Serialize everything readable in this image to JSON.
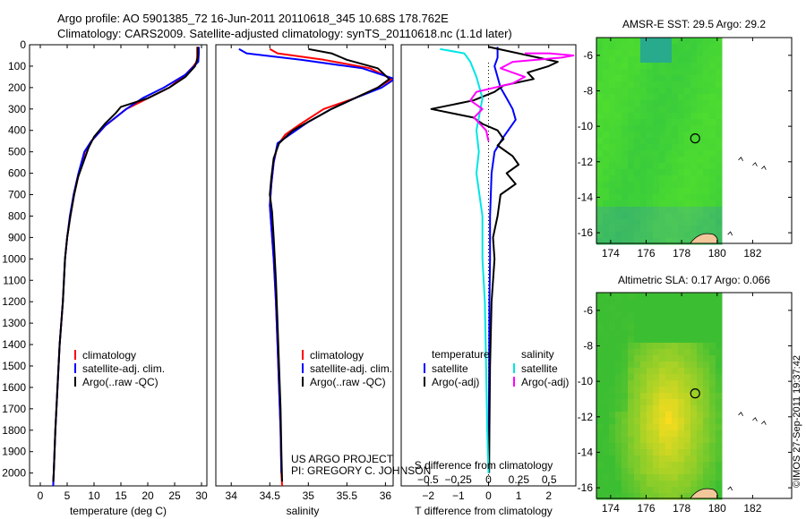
{
  "header": {
    "title_line1": "Argo profile: AO 5901385_72 16-Jun-2011 20110618_345 10.68S 178.762E",
    "title_line2": "Climatology: CARS2009. Satellite-adjusted climatology: synTS_20110618.nc (1.1d later)"
  },
  "credit": {
    "line1": "US ARGO PROJECT",
    "line2": "PI: GREGORY C. JOHNSON"
  },
  "stamp": "©IMOS 27-Sep-2011 19:37:42",
  "colors": {
    "clim": "#ff0000",
    "sat": "#0000ff",
    "argo": "#000000",
    "sat_s": "#00e5e5",
    "argo_s": "#ff00ff"
  },
  "chart_data": [
    {
      "id": "temperature",
      "type": "line",
      "title": "",
      "xlabel": "temperature (deg C)",
      "ylabel": "",
      "xlim": [
        -2,
        31
      ],
      "ylim": [
        2060,
        0
      ],
      "xticks": [
        0,
        5,
        10,
        15,
        20,
        25,
        30
      ],
      "yticks": [
        0,
        100,
        200,
        300,
        400,
        500,
        600,
        700,
        800,
        900,
        1000,
        1100,
        1200,
        1300,
        1400,
        1500,
        1600,
        1700,
        1800,
        1900,
        2000
      ],
      "legend": {
        "position": "lower-left",
        "entries": [
          "climatology",
          "satellite-adj. clim.",
          "Argo(..raw -QC)"
        ]
      },
      "series": [
        {
          "name": "climatology",
          "color": "#ff0000",
          "points": [
            [
              29.2,
              10
            ],
            [
              29.2,
              50
            ],
            [
              29.1,
              80
            ],
            [
              28.5,
              100
            ],
            [
              27,
              140
            ],
            [
              24,
              200
            ],
            [
              20,
              250
            ],
            [
              16,
              300
            ],
            [
              12,
              380
            ],
            [
              9.5,
              450
            ],
            [
              8.3,
              500
            ],
            [
              7.2,
              600
            ],
            [
              6.3,
              700
            ],
            [
              5.6,
              800
            ],
            [
              5,
              900
            ],
            [
              4.6,
              1000
            ],
            [
              4.2,
              1200
            ],
            [
              3.6,
              1400
            ],
            [
              3.2,
              1600
            ],
            [
              2.8,
              1800
            ],
            [
              2.5,
              2000
            ],
            [
              2.4,
              2060
            ]
          ]
        },
        {
          "name": "satellite-adj. clim.",
          "color": "#0000ff",
          "points": [
            [
              29.5,
              10
            ],
            [
              29.5,
              40
            ],
            [
              29.4,
              80
            ],
            [
              28.6,
              100
            ],
            [
              27,
              140
            ],
            [
              23,
              200
            ],
            [
              19,
              250
            ],
            [
              16,
              300
            ],
            [
              12,
              380
            ],
            [
              9.5,
              450
            ],
            [
              8.2,
              500
            ],
            [
              7.1,
              600
            ],
            [
              6.2,
              700
            ],
            [
              5.5,
              800
            ],
            [
              5,
              900
            ],
            [
              4.6,
              1000
            ],
            [
              4.2,
              1200
            ],
            [
              3.6,
              1400
            ],
            [
              3.2,
              1600
            ],
            [
              2.8,
              1800
            ],
            [
              2.5,
              2000
            ],
            [
              2.4,
              2060
            ]
          ]
        },
        {
          "name": "Argo(..raw -QC)",
          "color": "#000000",
          "points": [
            [
              29.3,
              10
            ],
            [
              29.3,
              60
            ],
            [
              28.8,
              100
            ],
            [
              27,
              150
            ],
            [
              24,
              200
            ],
            [
              20,
              250
            ],
            [
              15,
              290
            ],
            [
              14,
              320
            ],
            [
              12,
              370
            ],
            [
              10,
              430
            ],
            [
              9,
              480
            ],
            [
              8,
              550
            ],
            [
              7,
              620
            ],
            [
              6.3,
              700
            ],
            [
              5.6,
              800
            ],
            [
              5,
              900
            ],
            [
              4.6,
              1000
            ],
            [
              4.2,
              1200
            ],
            [
              3.6,
              1400
            ],
            [
              3.2,
              1600
            ],
            [
              2.8,
              1800
            ],
            [
              2.5,
              2000
            ],
            [
              2.4,
              2040
            ]
          ]
        }
      ]
    },
    {
      "id": "salinity",
      "type": "line",
      "title": "",
      "xlabel": "salinity",
      "ylabel": "",
      "xlim": [
        33.8,
        36.1
      ],
      "ylim": [
        2060,
        0
      ],
      "xticks": [
        34,
        34.5,
        35,
        35.5,
        36
      ],
      "yticks": [],
      "legend": {
        "position": "lower-left",
        "entries": [
          "climatology",
          "satellite-adj. clim.",
          "Argo(..raw -QC)"
        ]
      },
      "series": [
        {
          "name": "climatology",
          "color": "#ff0000",
          "points": [
            [
              34.5,
              20
            ],
            [
              34.6,
              40
            ],
            [
              35.2,
              70
            ],
            [
              35.8,
              110
            ],
            [
              36.08,
              160
            ],
            [
              35.9,
              200
            ],
            [
              35.6,
              250
            ],
            [
              35.2,
              300
            ],
            [
              34.9,
              370
            ],
            [
              34.7,
              420
            ],
            [
              34.6,
              470
            ],
            [
              34.55,
              550
            ],
            [
              34.52,
              650
            ],
            [
              34.5,
              750
            ],
            [
              34.52,
              850
            ],
            [
              34.55,
              1000
            ],
            [
              34.58,
              1200
            ],
            [
              34.6,
              1400
            ],
            [
              34.62,
              1600
            ],
            [
              34.64,
              1800
            ],
            [
              34.65,
              2000
            ],
            [
              34.66,
              2060
            ]
          ]
        },
        {
          "name": "satellite-adj. clim.",
          "color": "#0000ff",
          "points": [
            [
              34.1,
              20
            ],
            [
              34.2,
              40
            ],
            [
              34.9,
              70
            ],
            [
              35.7,
              110
            ],
            [
              36.12,
              160
            ],
            [
              35.95,
              200
            ],
            [
              35.6,
              250
            ],
            [
              35.3,
              300
            ],
            [
              35,
              360
            ],
            [
              34.8,
              410
            ],
            [
              34.6,
              460
            ],
            [
              34.55,
              550
            ],
            [
              34.52,
              650
            ],
            [
              34.5,
              750
            ],
            [
              34.52,
              850
            ],
            [
              34.55,
              1000
            ],
            [
              34.58,
              1200
            ],
            [
              34.6,
              1400
            ],
            [
              34.62,
              1600
            ],
            [
              34.64,
              1800
            ],
            [
              34.65,
              2000
            ]
          ]
        },
        {
          "name": "Argo(..raw -QC)",
          "color": "#000000",
          "points": [
            [
              35.0,
              20
            ],
            [
              35.3,
              40
            ],
            [
              35.5,
              70
            ],
            [
              35.9,
              110
            ],
            [
              36.05,
              160
            ],
            [
              35.9,
              200
            ],
            [
              35.6,
              250
            ],
            [
              35.3,
              300
            ],
            [
              35.05,
              350
            ],
            [
              34.8,
              400
            ],
            [
              34.62,
              460
            ],
            [
              34.55,
              530
            ],
            [
              34.52,
              620
            ],
            [
              34.5,
              700
            ],
            [
              34.53,
              780
            ],
            [
              34.55,
              900
            ],
            [
              34.58,
              1100
            ],
            [
              34.6,
              1300
            ],
            [
              34.62,
              1500
            ],
            [
              34.64,
              1700
            ],
            [
              34.65,
              1900
            ],
            [
              34.66,
              2040
            ]
          ]
        }
      ]
    },
    {
      "id": "difference",
      "type": "line",
      "title": "",
      "xlabel": "T difference from climatology",
      "xlabel_top": "S difference from climatology",
      "ylabel": "",
      "xlim": [
        -2.9,
        2.9
      ],
      "ylim": [
        2060,
        0
      ],
      "xticks": [
        -2,
        -1,
        0,
        1,
        2
      ],
      "xticklabels": [
        "−2",
        "−1",
        "0",
        "1",
        "2"
      ],
      "xticks_top": [
        -0.5,
        -0.25,
        0,
        0.25,
        0.5
      ],
      "xticklabels_top": [
        "−0.5",
        "−0.25",
        "0",
        "0.25",
        "0.5"
      ],
      "legend_temperature": {
        "title": "temperature",
        "entries": [
          "satellite",
          "Argo(-adj)"
        ]
      },
      "legend_salinity": {
        "title": "salinity",
        "entries": [
          "satellite",
          "Argo(-adj)"
        ]
      },
      "series": [
        {
          "name": "satellite",
          "group": "temperature",
          "color": "#0000ff",
          "points": [
            [
              0.3,
              10
            ],
            [
              0.3,
              60
            ],
            [
              0.2,
              100
            ],
            [
              0.4,
              200
            ],
            [
              0.6,
              250
            ],
            [
              0.8,
              300
            ],
            [
              0.9,
              350
            ],
            [
              0.5,
              430
            ],
            [
              0.2,
              500
            ],
            [
              0.1,
              600
            ],
            [
              0.05,
              800
            ],
            [
              0.05,
              1000
            ],
            [
              0.03,
              1200
            ],
            [
              0.02,
              1500
            ],
            [
              0.01,
              1800
            ],
            [
              0.0,
              2000
            ]
          ]
        },
        {
          "name": "Argo(-adj)",
          "group": "temperature",
          "color": "#000000",
          "points": [
            [
              0,
              10
            ],
            [
              2.3,
              80
            ],
            [
              2,
              100
            ],
            [
              1.3,
              130
            ],
            [
              1.5,
              160
            ],
            [
              0.5,
              190
            ],
            [
              0.2,
              220
            ],
            [
              -0.5,
              260
            ],
            [
              -1.9,
              300
            ],
            [
              -1.2,
              320
            ],
            [
              -0.5,
              340
            ],
            [
              -0.2,
              370
            ],
            [
              0.3,
              400
            ],
            [
              0.5,
              440
            ],
            [
              0.3,
              470
            ],
            [
              0.8,
              520
            ],
            [
              1.0,
              560
            ],
            [
              0.6,
              600
            ],
            [
              0.9,
              650
            ],
            [
              0.4,
              700
            ],
            [
              0.3,
              800
            ],
            [
              0.15,
              900
            ],
            [
              0.2,
              1000
            ],
            [
              0.1,
              1200
            ],
            [
              0.05,
              1500
            ],
            [
              0.03,
              1800
            ],
            [
              0.02,
              2000
            ]
          ]
        },
        {
          "name": "satellite",
          "group": "salinity",
          "color": "#00e5e5",
          "points": [
            [
              -0.4,
              20
            ],
            [
              -0.2,
              40
            ],
            [
              -0.15,
              80
            ],
            [
              -0.1,
              150
            ],
            [
              -0.05,
              250
            ],
            [
              -0.1,
              400
            ],
            [
              -0.08,
              500
            ],
            [
              -0.1,
              600
            ],
            [
              -0.05,
              800
            ],
            [
              -0.05,
              1000
            ],
            [
              -0.03,
              1200
            ],
            [
              -0.02,
              1500
            ],
            [
              -0.01,
              1800
            ],
            [
              0,
              2000
            ]
          ]
        },
        {
          "name": "Argo(-adj)",
          "group": "salinity",
          "color": "#ff00ff",
          "points": [
            [
              0.3,
              40
            ],
            [
              0.5,
              40
            ],
            [
              0.7,
              50
            ],
            [
              0.6,
              60
            ],
            [
              0.2,
              80
            ],
            [
              0.1,
              110
            ],
            [
              0.3,
              150
            ],
            [
              0.2,
              180
            ],
            [
              -0.1,
              220
            ],
            [
              -0.15,
              260
            ],
            [
              -0.05,
              300
            ],
            [
              -0.12,
              340
            ],
            [
              -0.02,
              400
            ],
            [
              0,
              450
            ]
          ]
        }
      ]
    },
    {
      "id": "sst_map",
      "type": "heatmap",
      "title": "AMSR-E SST: 29.5 Argo: 29.2",
      "xlim": [
        173.2,
        184.2
      ],
      "ylim": [
        -16.6,
        -5
      ],
      "xticks": [
        174,
        176,
        178,
        180,
        182
      ],
      "yticks": [
        -6,
        -8,
        -10,
        -12,
        -14,
        -16
      ],
      "data_xlim": [
        173.2,
        180
      ],
      "marker": {
        "lon": 178.762,
        "lat": -10.68
      }
    },
    {
      "id": "sla_map",
      "type": "heatmap",
      "title": "Altimetric SLA: 0.17 Argo: 0.066",
      "xlim": [
        173.2,
        184.2
      ],
      "ylim": [
        -16.6,
        -5
      ],
      "xticks": [
        174,
        176,
        178,
        180,
        182
      ],
      "yticks": [
        -6,
        -8,
        -10,
        -12,
        -14,
        -16
      ],
      "data_xlim": [
        173.2,
        180
      ],
      "marker": {
        "lon": 178.762,
        "lat": -10.68
      }
    }
  ]
}
